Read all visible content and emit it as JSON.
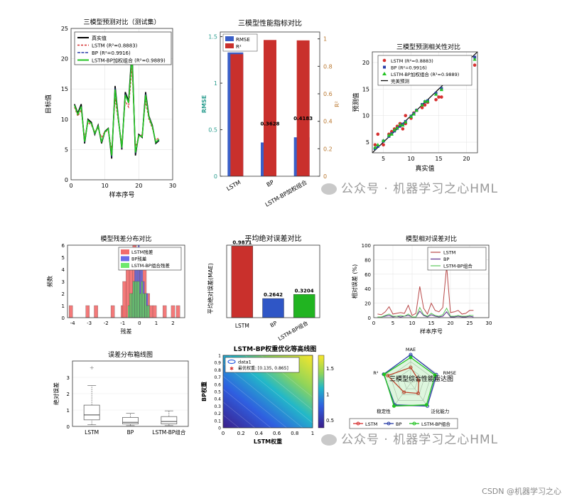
{
  "watermarks": {
    "text": "公众号 · 机器学习之心HML",
    "footer": "CSDN @机器学习之心"
  },
  "colors": {
    "lstm": "#d62f2f",
    "bp": "#2a3fa8",
    "combo": "#22c322",
    "true": "#000000",
    "rmse": "#3a5fc8",
    "r2": "#c9302c",
    "mae_bp": "#2f56c6",
    "mae_combo": "#21b421"
  },
  "chart_data": [
    {
      "id": "pred",
      "type": "line",
      "title": "三模型预测对比（测试集）",
      "xlabel": "样本序号",
      "ylabel": "目标值",
      "xlim": [
        0,
        30
      ],
      "ylim": [
        0,
        25
      ],
      "xticks": [
        0,
        10,
        20,
        30
      ],
      "yticks": [
        0,
        5,
        10,
        15,
        20,
        25
      ],
      "x": [
        1,
        2,
        3,
        4,
        5,
        6,
        7,
        8,
        9,
        10,
        11,
        12,
        13,
        14,
        15,
        16,
        17,
        18,
        19,
        20,
        21,
        22,
        23,
        24,
        25,
        26
      ],
      "series": [
        {
          "name": "真实值",
          "values": [
            12.5,
            11.0,
            12.5,
            6.0,
            10.0,
            9.5,
            7.5,
            9.0,
            6.0,
            8.0,
            8.5,
            3.5,
            15.5,
            10.0,
            5.0,
            14.5,
            13.0,
            21.5,
            4.0,
            7.5,
            7.0,
            14.5,
            10.5,
            9.0,
            6.0,
            6.5
          ]
        },
        {
          "name": "LSTM (R²=0.8883)",
          "values": [
            12.0,
            10.5,
            11.5,
            7.0,
            9.5,
            9.0,
            8.0,
            8.5,
            7.0,
            8.0,
            8.0,
            5.0,
            13.5,
            9.5,
            6.0,
            13.0,
            12.0,
            18.5,
            5.5,
            7.0,
            7.5,
            13.0,
            10.0,
            8.5,
            6.5,
            7.0
          ]
        },
        {
          "name": "BP (R²=0.9916)",
          "values": [
            12.3,
            10.8,
            12.2,
            6.2,
            9.8,
            9.3,
            7.6,
            8.8,
            6.2,
            7.9,
            8.4,
            3.8,
            15.1,
            9.9,
            5.2,
            14.2,
            12.8,
            21.0,
            4.3,
            7.4,
            7.1,
            14.2,
            10.4,
            8.9,
            6.1,
            6.6
          ]
        },
        {
          "name": "LSTM-BP加权组合 (R²=0.9889)",
          "values": [
            12.3,
            10.8,
            12.1,
            6.3,
            9.8,
            9.3,
            7.7,
            8.8,
            6.3,
            7.9,
            8.4,
            4.0,
            14.9,
            9.8,
            5.3,
            14.0,
            12.7,
            20.6,
            4.5,
            7.3,
            7.1,
            14.0,
            10.3,
            8.8,
            6.2,
            6.7
          ]
        }
      ]
    },
    {
      "id": "metrics",
      "type": "bar",
      "title": "三模型性能指标对比",
      "categories": [
        "LSTM",
        "BP",
        "LSTM-BP加权组合"
      ],
      "ylabel_left": "RMSE",
      "ylabel_right": "R²",
      "ylim_left": [
        0,
        1.55
      ],
      "ylim_right": [
        0,
        1.05
      ],
      "yticks_left": [
        0,
        0.5,
        1,
        1.5
      ],
      "yticks_right": [
        0,
        0.2,
        0.4,
        0.6,
        0.8,
        1
      ],
      "series": [
        {
          "name": "RMSE",
          "values": [
            1.33,
            0.3628,
            0.4183
          ],
          "labels": [
            "",
            "0.3628",
            "0.4183"
          ]
        },
        {
          "name": "R²",
          "values": [
            0.8883,
            0.9916,
            0.9889
          ]
        }
      ]
    },
    {
      "id": "corr",
      "type": "scatter",
      "title": "三模型预测相关性对比",
      "xlabel": "真实值",
      "ylabel": "预测值",
      "xlim": [
        3,
        22
      ],
      "ylim": [
        3,
        22
      ],
      "xticks": [
        5,
        10,
        15,
        20
      ],
      "yticks": [
        5,
        10,
        15,
        20
      ],
      "series": [
        {
          "name": "LSTM (R²=0.8883)",
          "x": [
            3.5,
            4,
            5,
            6,
            6.5,
            7,
            7.5,
            8,
            8.5,
            9,
            9,
            10,
            10.5,
            11,
            12,
            12.5,
            13,
            14.5,
            15,
            15.5,
            21.5
          ],
          "y": [
            4.5,
            6.5,
            4.5,
            6.5,
            7,
            7.5,
            8,
            8.5,
            7.5,
            8.5,
            10,
            9.5,
            10.5,
            11,
            11.5,
            12,
            12.5,
            13,
            13.5,
            13.5,
            19.5
          ]
        },
        {
          "name": "BP (R²=0.9916)",
          "x": [
            3.5,
            4,
            5,
            6,
            6.5,
            7,
            7.5,
            8,
            8.5,
            9,
            10,
            10.5,
            11,
            12,
            12.5,
            13,
            14.5,
            15.5,
            21.5
          ],
          "y": [
            3.8,
            4.2,
            5.2,
            6.1,
            6.6,
            7.1,
            7.6,
            8.0,
            8.4,
            8.9,
            9.9,
            10.4,
            11.0,
            12.1,
            12.6,
            12.8,
            14.2,
            15.1,
            21.0
          ]
        },
        {
          "name": "LSTM-BP加权组合 (R²=0.9889)",
          "x": [
            3.5,
            4,
            5,
            6,
            6.5,
            7,
            7.5,
            8,
            8.5,
            9,
            10,
            10.5,
            11,
            12,
            12.5,
            13,
            14.5,
            15.5,
            21.5
          ],
          "y": [
            4.0,
            4.5,
            5.3,
            6.3,
            6.5,
            7.3,
            7.7,
            8.3,
            8.2,
            8.8,
            9.8,
            10.3,
            11.0,
            12.0,
            12.7,
            12.7,
            14.0,
            14.9,
            20.6
          ]
        },
        {
          "name": "完美预测",
          "x": [
            3,
            22
          ],
          "y": [
            3,
            22
          ]
        }
      ]
    },
    {
      "id": "resid",
      "type": "bar",
      "title": "模型残差分布对比",
      "xlabel": "残差",
      "ylabel": "频数",
      "xlim": [
        -4.3,
        2.7
      ],
      "ylim": [
        0,
        6
      ],
      "xticks": [
        -4,
        -3,
        -2,
        -1,
        0,
        1,
        2
      ],
      "yticks": [
        0,
        1,
        2,
        3,
        4,
        5,
        6
      ],
      "series": [
        {
          "name": "LSTM残差",
          "bins": [
            -4.1,
            -3.1,
            -2.6,
            -1.6,
            -1.0,
            -0.9,
            -0.7,
            -0.5,
            -0.3,
            -0.2,
            0.0,
            0.1,
            0.3,
            0.5,
            0.7,
            0.9,
            1.5,
            2.0,
            2.3
          ],
          "counts": [
            1,
            1,
            1,
            1,
            1,
            3,
            5,
            4,
            6,
            3,
            4,
            1,
            5,
            2,
            1,
            1,
            1,
            1,
            1
          ]
        },
        {
          "name": "BP残差",
          "bins": [
            -0.6,
            -0.45,
            -0.35,
            -0.25,
            -0.15,
            -0.05,
            0.05,
            0.15,
            0.25,
            0.35,
            0.45,
            0.55
          ],
          "counts": [
            1,
            2,
            3,
            4,
            5,
            6,
            5,
            4,
            3,
            2,
            2,
            1
          ]
        },
        {
          "name": "LSTM-BP组合残差",
          "bins": [
            -0.65,
            -0.55,
            -0.45,
            -0.35,
            -0.25,
            -0.15,
            -0.05,
            0.05,
            0.15,
            0.25,
            0.35,
            0.45,
            0.55
          ],
          "counts": [
            1,
            2,
            2,
            3,
            3,
            3,
            3,
            2,
            3,
            2,
            2,
            1,
            1
          ]
        }
      ]
    },
    {
      "id": "mae",
      "type": "bar",
      "title": "平均绝对误差对比",
      "categories": [
        "LSTM",
        "BP",
        "LSTM-BP组合"
      ],
      "ylabel": "平均绝对误差(MAE)",
      "ylim": [
        0,
        1.0
      ],
      "values": [
        0.9871,
        0.2642,
        0.3204
      ],
      "labels": [
        "0.9871",
        "0.2642",
        "0.3204"
      ]
    },
    {
      "id": "relerr",
      "type": "line",
      "title": "模型相对误差对比",
      "xlabel": "样本序号",
      "ylabel": "相对误差 (%)",
      "xlim": [
        0,
        30
      ],
      "ylim": [
        0,
        100
      ],
      "xticks": [
        0,
        5,
        10,
        15,
        20,
        25,
        30
      ],
      "yticks": [
        0,
        20,
        40,
        60,
        80,
        100
      ],
      "x": [
        1,
        2,
        3,
        4,
        5,
        6,
        7,
        8,
        9,
        10,
        11,
        12,
        13,
        14,
        15,
        16,
        17,
        18,
        19,
        20,
        21,
        22,
        23,
        24,
        25,
        26
      ],
      "series": [
        {
          "name": "LSTM",
          "values": [
            5,
            4,
            8,
            15,
            5,
            6,
            7,
            6,
            17,
            3,
            6,
            43,
            13,
            5,
            20,
            10,
            8,
            14,
            71,
            7,
            8,
            10,
            5,
            6,
            10,
            10
          ]
        },
        {
          "name": "BP",
          "values": [
            1,
            1,
            2,
            3,
            1,
            2,
            1,
            2,
            3,
            1,
            1,
            9,
            3,
            1,
            4,
            2,
            1,
            2,
            8,
            1,
            1,
            2,
            1,
            1,
            2,
            1
          ]
        },
        {
          "name": "LSTM-BP组合",
          "values": [
            1,
            1,
            3,
            5,
            2,
            2,
            3,
            2,
            5,
            1,
            1,
            14,
            4,
            2,
            6,
            3,
            2,
            4,
            13,
            2,
            2,
            3,
            2,
            2,
            3,
            3
          ]
        }
      ]
    },
    {
      "id": "box",
      "type": "box",
      "title": "误差分布箱线图",
      "ylabel": "绝对误差",
      "categories": [
        "LSTM",
        "BP",
        "LSTM-BP组合"
      ],
      "ylim": [
        0,
        4
      ],
      "yticks": [
        0,
        1,
        2,
        3
      ],
      "stats": [
        {
          "min": 0.1,
          "q1": 0.4,
          "median": 0.7,
          "q3": 1.3,
          "max": 2.5,
          "outliers": [
            3.6
          ]
        },
        {
          "min": 0.05,
          "q1": 0.15,
          "median": 0.25,
          "q3": 0.55,
          "max": 0.8,
          "outliers": []
        },
        {
          "min": 0.05,
          "q1": 0.15,
          "median": 0.3,
          "q3": 0.6,
          "max": 0.95,
          "outliers": []
        }
      ]
    },
    {
      "id": "contour",
      "type": "heatmap",
      "title": "LSTM-BP权重优化等高线图",
      "xlabel": "LSTM权重",
      "ylabel": "BP权重",
      "xlim": [
        0,
        1
      ],
      "ylim": [
        0,
        1
      ],
      "xticks": [
        0,
        0.2,
        0.4,
        0.6,
        0.8,
        1
      ],
      "yticks": [
        0,
        0.1,
        0.2,
        0.3,
        0.4,
        0.5,
        0.6,
        0.7,
        0.8,
        0.9,
        1
      ],
      "colorbar_ticks": [
        0.5,
        1,
        1.5
      ],
      "colorbar_range": [
        0.35,
        1.75
      ],
      "legend": [
        "data1",
        "最优权重: [0.135, 0.865]"
      ],
      "optimum": [
        0.135,
        0.865
      ]
    },
    {
      "id": "radar",
      "type": "radar",
      "title": "三模型综合性能雷达图",
      "axes": [
        "MAE",
        "RMSE",
        "泛化能力",
        "稳定性",
        "R²"
      ],
      "series": [
        {
          "name": "LSTM",
          "values": [
            0.55,
            0.3,
            0.45,
            0.4,
            0.85
          ]
        },
        {
          "name": "BP",
          "values": [
            1.0,
            0.95,
            1.0,
            0.95,
            1.0
          ]
        },
        {
          "name": "LSTM-BP组合",
          "values": [
            0.9,
            0.9,
            0.95,
            1.0,
            0.98
          ]
        }
      ]
    }
  ]
}
